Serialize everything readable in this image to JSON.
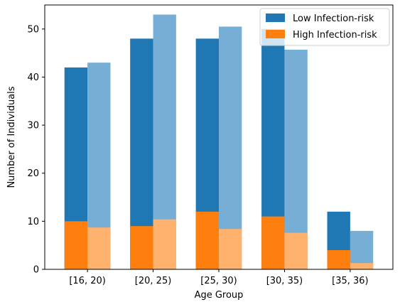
{
  "chart_data": {
    "type": "bar",
    "categories": [
      "[16, 20)",
      "[20, 25)",
      "[25, 30)",
      "[30, 35)",
      "[35, 36)"
    ],
    "xlabel": "Age Group",
    "ylabel": "Number of Individuals",
    "ylim": [
      0,
      55
    ],
    "yticks": [
      0,
      10,
      20,
      30,
      40,
      50
    ],
    "grid": false,
    "legend_position": "top-right",
    "legend": [
      {
        "name": "Low Infection-risk",
        "color": "#1f77b4"
      },
      {
        "name": "High Infection-risk",
        "color": "#ff7f0e"
      }
    ],
    "series": [
      {
        "group": "left bar",
        "low_total": [
          42,
          48,
          48,
          50,
          12
        ],
        "high": [
          10,
          9,
          12,
          11,
          4
        ],
        "low_color": "#1f77b4",
        "high_color": "#ff7f0e"
      },
      {
        "group": "right bar",
        "low_total": [
          43,
          53,
          50.5,
          45.7,
          8
        ],
        "high": [
          8.7,
          10.4,
          8.4,
          7.6,
          1.3
        ],
        "low_color": "#77aed5",
        "high_color": "#ffb16e"
      }
    ]
  }
}
